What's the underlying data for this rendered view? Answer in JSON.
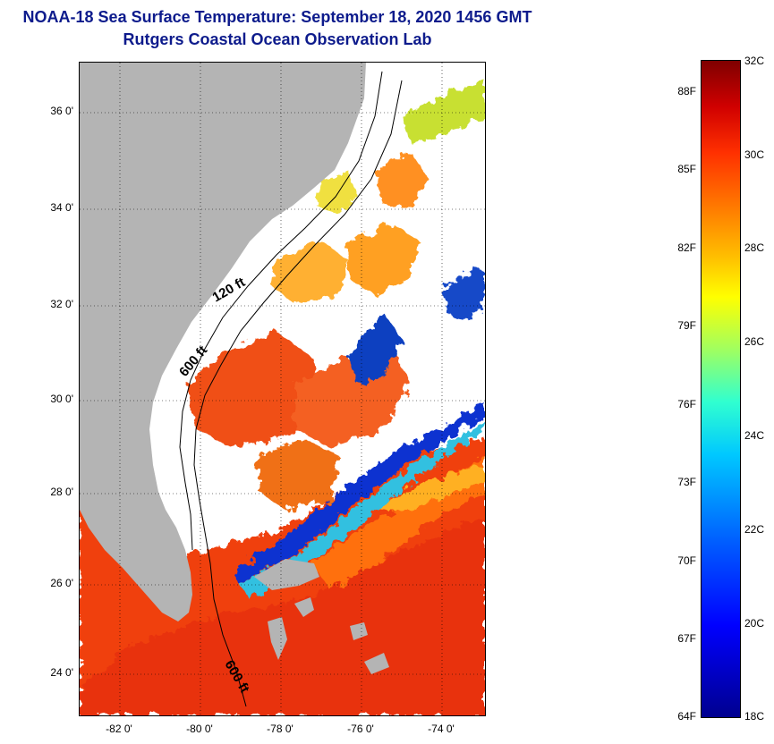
{
  "title_line1": "NOAA-18 Sea Surface Temperature:  September 18, 2020 1456 GMT",
  "title_line2": "Rutgers Coastal Ocean Observation Lab",
  "map": {
    "lat_ticks": [
      "36 0'",
      "34 0'",
      "32 0'",
      "30 0'",
      "28 0'",
      "26 0'",
      "24 0'"
    ],
    "lon_ticks": [
      "-82 0'",
      "-80 0'",
      "-78 0'",
      "-76 0'",
      "-74 0'"
    ],
    "annotations": {
      "isobath_120": "120 ft",
      "isobath_600_north": "600 ft",
      "isobath_600_south": "600 ft"
    },
    "land_color": "#b4b4b4",
    "cloud_color": "#ffffff"
  },
  "colorbar": {
    "celsius_labels": [
      "32C",
      "30C",
      "28C",
      "26C",
      "24C",
      "22C",
      "20C",
      "18C"
    ],
    "fahrenheit_labels": [
      "88F",
      "85F",
      "82F",
      "79F",
      "76F",
      "73F",
      "70F",
      "67F",
      "64F"
    ],
    "range_c": [
      18,
      32
    ]
  }
}
